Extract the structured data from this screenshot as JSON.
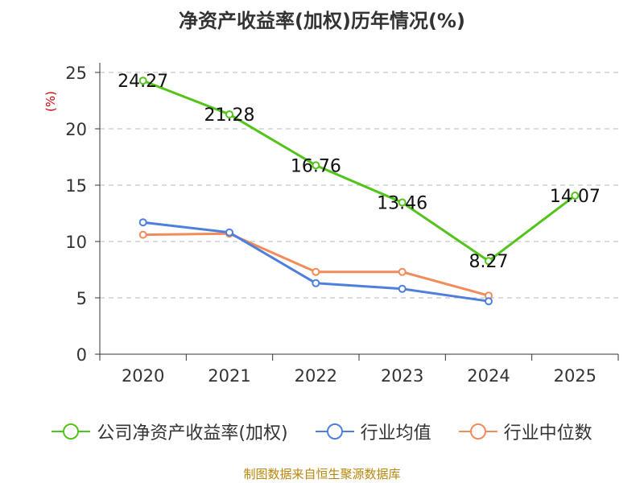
{
  "chart_data": {
    "type": "line",
    "title": "净资产收益率(加权)历年情况(%)",
    "ylabel": "(%)",
    "xlabel": "",
    "categories": [
      "2020",
      "2021",
      "2022",
      "2023",
      "2024",
      "2025"
    ],
    "ylim": [
      0,
      25
    ],
    "yticks": [
      0,
      5,
      10,
      15,
      20,
      25
    ],
    "grid": true,
    "legend_position": "bottom",
    "series": [
      {
        "name": "公司净资产收益率(加权)",
        "color": "#52c41a",
        "values": [
          24.27,
          21.28,
          16.76,
          13.46,
          8.27,
          14.07
        ],
        "labels": [
          "24.27",
          "21.28",
          "16.76",
          "13.46",
          "8.27",
          "14.07"
        ]
      },
      {
        "name": "行业均值",
        "color": "#4f7fdc",
        "values": [
          11.7,
          10.8,
          6.3,
          5.8,
          4.7,
          null
        ]
      },
      {
        "name": "行业中位数",
        "color": "#f28b5a",
        "values": [
          10.6,
          10.7,
          7.3,
          7.3,
          5.2,
          null
        ]
      }
    ]
  },
  "source": "制图数据来自恒生聚源数据库"
}
